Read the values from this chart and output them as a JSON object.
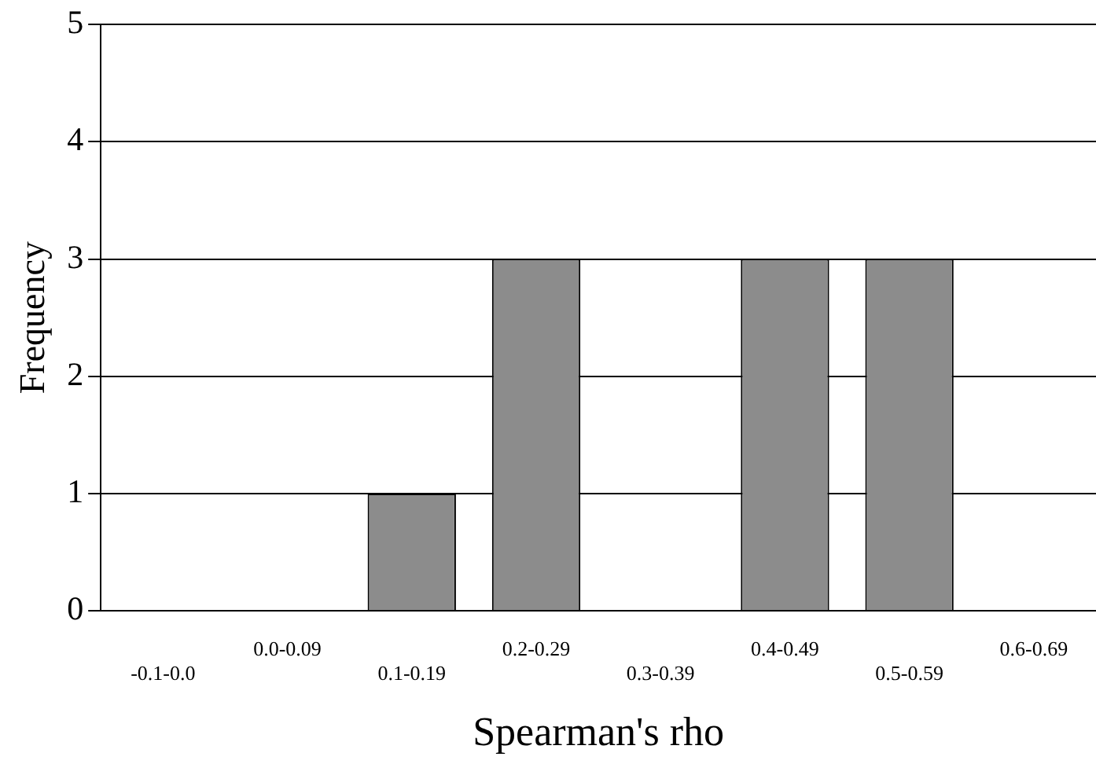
{
  "chart_data": {
    "type": "bar",
    "xlabel": "Spearman's rho",
    "ylabel": "Frequency",
    "categories": [
      "-0.1-0.0",
      "0.0-0.09",
      "0.1-0.19",
      "0.2-0.29",
      "0.3-0.39",
      "0.4-0.49",
      "0.5-0.59",
      "0.6-0.69"
    ],
    "values": [
      0,
      0,
      1,
      3,
      0,
      3,
      3,
      0
    ],
    "color": "#8c8c8c",
    "ylim": [
      0,
      5
    ],
    "yticks": [
      0,
      1,
      2,
      3,
      4,
      5
    ],
    "grid": "y",
    "legend": false
  }
}
